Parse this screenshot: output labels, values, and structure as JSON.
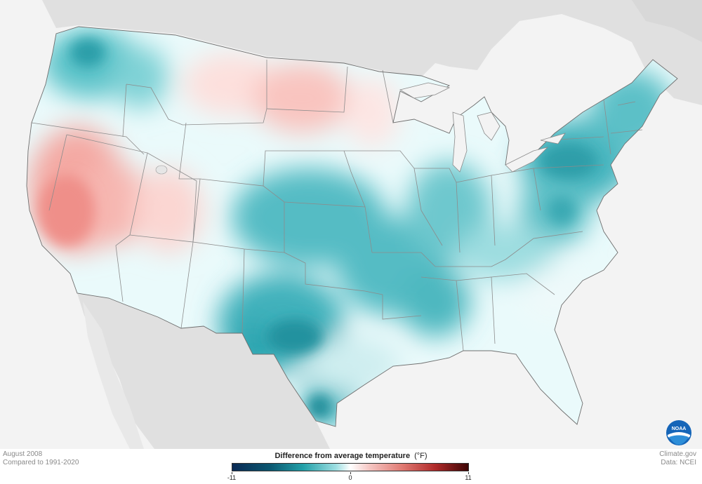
{
  "footer": {
    "date_line": "August 2008",
    "baseline_line": "Compared to 1991-2020",
    "source_site": "Climate.gov",
    "source_data": "Data: NCEI"
  },
  "legend": {
    "title": "Difference from average temperature",
    "unit": "(°F)",
    "min_label": "-11",
    "mid_label": "0",
    "max_label": "11",
    "colors": [
      "#0a2a55",
      "#0b5770",
      "#22a0a8",
      "#9edfe2",
      "#ffffff",
      "#f5c7c4",
      "#e07a73",
      "#b02a2a",
      "#3d0505"
    ]
  },
  "logo": {
    "text": "NOAA",
    "icon": "noaa-logo-icon"
  },
  "map": {
    "land_color": "#e0e0e0",
    "ocean_color": "#f3f3f3",
    "cool_color": "#2aa2ad",
    "warm_color": "#f4a09b"
  }
}
